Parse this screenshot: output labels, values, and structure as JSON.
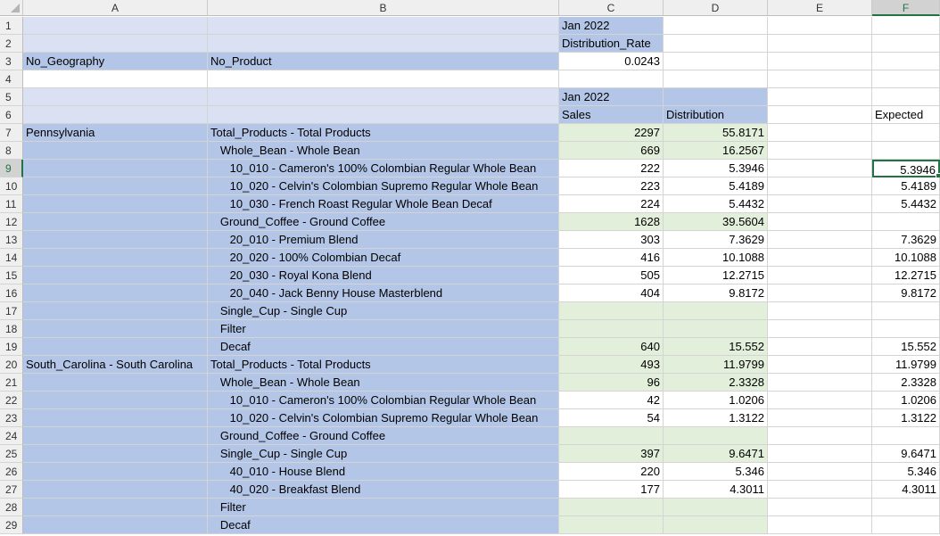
{
  "columns": [
    "A",
    "B",
    "C",
    "D",
    "E",
    "F"
  ],
  "selected_column": "F",
  "selected_row": "9",
  "rows": [
    {
      "n": "1",
      "a": "",
      "b": "",
      "c": "Jan 2022",
      "d": "",
      "e": "",
      "f": "",
      "st": {
        "a": "header",
        "b": "header",
        "c": "label",
        "d": "white"
      }
    },
    {
      "n": "2",
      "a": "",
      "b": "",
      "c": "Distribution_Rate",
      "d": "",
      "e": "",
      "f": "",
      "st": {
        "a": "header",
        "b": "header",
        "c": "label",
        "d": "white"
      }
    },
    {
      "n": "3",
      "a": "No_Geography",
      "b": "No_Product",
      "c": "0.0243",
      "d": "",
      "e": "",
      "f": "",
      "st": {
        "a": "label",
        "b": "label",
        "c": "white",
        "d": "white"
      },
      "num": [
        "c"
      ]
    },
    {
      "n": "4",
      "a": "",
      "b": "",
      "c": "",
      "d": "",
      "e": "",
      "f": "",
      "st": {}
    },
    {
      "n": "5",
      "a": "",
      "b": "",
      "c": "Jan 2022",
      "d": "",
      "e": "",
      "f": "",
      "st": {
        "a": "header",
        "b": "header",
        "c": "label",
        "d": "label"
      }
    },
    {
      "n": "6",
      "a": "",
      "b": "",
      "c": "Sales",
      "d": "Distribution",
      "e": "",
      "f": "Expected",
      "st": {
        "a": "header",
        "b": "header",
        "c": "label",
        "d": "label"
      }
    },
    {
      "n": "7",
      "a": "Pennsylvania",
      "b": "Total_Products - Total Products",
      "c": "2297",
      "d": "55.8171",
      "e": "",
      "f": "",
      "st": {
        "a": "label",
        "b": "label",
        "c": "green",
        "d": "green"
      },
      "num": [
        "c",
        "d"
      ]
    },
    {
      "n": "8",
      "a": "",
      "b": "   Whole_Bean - Whole Bean",
      "c": "669",
      "d": "16.2567",
      "e": "",
      "f": "",
      "st": {
        "a": "label",
        "b": "label",
        "c": "green",
        "d": "green"
      },
      "num": [
        "c",
        "d"
      ]
    },
    {
      "n": "9",
      "a": "",
      "b": "      10_010 - Cameron's 100% Colombian Regular Whole Bean",
      "c": "222",
      "d": "5.3946",
      "e": "",
      "f": "5.3946",
      "st": {
        "a": "label",
        "b": "label",
        "c": "white",
        "d": "white"
      },
      "num": [
        "c",
        "d",
        "f"
      ]
    },
    {
      "n": "10",
      "a": "",
      "b": "      10_020 - Celvin's Colombian Supremo Regular Whole Bean",
      "c": "223",
      "d": "5.4189",
      "e": "",
      "f": "5.4189",
      "st": {
        "a": "label",
        "b": "label",
        "c": "white",
        "d": "white"
      },
      "num": [
        "c",
        "d",
        "f"
      ]
    },
    {
      "n": "11",
      "a": "",
      "b": "      10_030 - French Roast Regular Whole Bean Decaf",
      "c": "224",
      "d": "5.4432",
      "e": "",
      "f": "5.4432",
      "st": {
        "a": "label",
        "b": "label",
        "c": "white",
        "d": "white"
      },
      "num": [
        "c",
        "d",
        "f"
      ]
    },
    {
      "n": "12",
      "a": "",
      "b": "   Ground_Coffee - Ground Coffee",
      "c": "1628",
      "d": "39.5604",
      "e": "",
      "f": "",
      "st": {
        "a": "label",
        "b": "label",
        "c": "green",
        "d": "green"
      },
      "num": [
        "c",
        "d"
      ]
    },
    {
      "n": "13",
      "a": "",
      "b": "      20_010 - Premium Blend",
      "c": "303",
      "d": "7.3629",
      "e": "",
      "f": "7.3629",
      "st": {
        "a": "label",
        "b": "label",
        "c": "white",
        "d": "white"
      },
      "num": [
        "c",
        "d",
        "f"
      ]
    },
    {
      "n": "14",
      "a": "",
      "b": "      20_020 - 100% Colombian Decaf",
      "c": "416",
      "d": "10.1088",
      "e": "",
      "f": "10.1088",
      "st": {
        "a": "label",
        "b": "label",
        "c": "white",
        "d": "white"
      },
      "num": [
        "c",
        "d",
        "f"
      ]
    },
    {
      "n": "15",
      "a": "",
      "b": "      20_030 - Royal Kona Blend",
      "c": "505",
      "d": "12.2715",
      "e": "",
      "f": "12.2715",
      "st": {
        "a": "label",
        "b": "label",
        "c": "white",
        "d": "white"
      },
      "num": [
        "c",
        "d",
        "f"
      ]
    },
    {
      "n": "16",
      "a": "",
      "b": "      20_040 - Jack Benny House Masterblend",
      "c": "404",
      "d": "9.8172",
      "e": "",
      "f": "9.8172",
      "st": {
        "a": "label",
        "b": "label",
        "c": "white",
        "d": "white"
      },
      "num": [
        "c",
        "d",
        "f"
      ]
    },
    {
      "n": "17",
      "a": "",
      "b": "   Single_Cup - Single Cup",
      "c": "",
      "d": "",
      "e": "",
      "f": "",
      "st": {
        "a": "label",
        "b": "label",
        "c": "green",
        "d": "green"
      }
    },
    {
      "n": "18",
      "a": "",
      "b": "   Filter",
      "c": "",
      "d": "",
      "e": "",
      "f": "",
      "st": {
        "a": "label",
        "b": "label",
        "c": "green",
        "d": "green"
      }
    },
    {
      "n": "19",
      "a": "",
      "b": "   Decaf",
      "c": "640",
      "d": "15.552",
      "e": "",
      "f": "15.552",
      "st": {
        "a": "label",
        "b": "label",
        "c": "green",
        "d": "green"
      },
      "num": [
        "c",
        "d",
        "f"
      ]
    },
    {
      "n": "20",
      "a": "South_Carolina - South Carolina",
      "b": "Total_Products - Total Products",
      "c": "493",
      "d": "11.9799",
      "e": "",
      "f": "11.9799",
      "st": {
        "a": "label",
        "b": "label",
        "c": "green",
        "d": "green"
      },
      "num": [
        "c",
        "d",
        "f"
      ]
    },
    {
      "n": "21",
      "a": "",
      "b": "   Whole_Bean - Whole Bean",
      "c": "96",
      "d": "2.3328",
      "e": "",
      "f": "2.3328",
      "st": {
        "a": "label",
        "b": "label",
        "c": "green",
        "d": "green"
      },
      "num": [
        "c",
        "d",
        "f"
      ]
    },
    {
      "n": "22",
      "a": "",
      "b": "      10_010 - Cameron's 100% Colombian Regular Whole Bean",
      "c": "42",
      "d": "1.0206",
      "e": "",
      "f": "1.0206",
      "st": {
        "a": "label",
        "b": "label",
        "c": "white",
        "d": "white"
      },
      "num": [
        "c",
        "d",
        "f"
      ]
    },
    {
      "n": "23",
      "a": "",
      "b": "      10_020 - Celvin's Colombian Supremo Regular Whole Bean",
      "c": "54",
      "d": "1.3122",
      "e": "",
      "f": "1.3122",
      "st": {
        "a": "label",
        "b": "label",
        "c": "white",
        "d": "white"
      },
      "num": [
        "c",
        "d",
        "f"
      ]
    },
    {
      "n": "24",
      "a": "",
      "b": "   Ground_Coffee - Ground Coffee",
      "c": "",
      "d": "",
      "e": "",
      "f": "",
      "st": {
        "a": "label",
        "b": "label",
        "c": "green",
        "d": "green"
      }
    },
    {
      "n": "25",
      "a": "",
      "b": "   Single_Cup - Single Cup",
      "c": "397",
      "d": "9.6471",
      "e": "",
      "f": "9.6471",
      "st": {
        "a": "label",
        "b": "label",
        "c": "green",
        "d": "green"
      },
      "num": [
        "c",
        "d",
        "f"
      ]
    },
    {
      "n": "26",
      "a": "",
      "b": "      40_010 - House Blend",
      "c": "220",
      "d": "5.346",
      "e": "",
      "f": "5.346",
      "st": {
        "a": "label",
        "b": "label",
        "c": "white",
        "d": "white"
      },
      "num": [
        "c",
        "d",
        "f"
      ]
    },
    {
      "n": "27",
      "a": "",
      "b": "      40_020 - Breakfast Blend",
      "c": "177",
      "d": "4.3011",
      "e": "",
      "f": "4.3011",
      "st": {
        "a": "label",
        "b": "label",
        "c": "white",
        "d": "white"
      },
      "num": [
        "c",
        "d",
        "f"
      ]
    },
    {
      "n": "28",
      "a": "",
      "b": "   Filter",
      "c": "",
      "d": "",
      "e": "",
      "f": "",
      "st": {
        "a": "label",
        "b": "label",
        "c": "green",
        "d": "green"
      }
    },
    {
      "n": "29",
      "a": "",
      "b": "   Decaf",
      "c": "",
      "d": "",
      "e": "",
      "f": "",
      "st": {
        "a": "label",
        "b": "label",
        "c": "green",
        "d": "green"
      }
    }
  ]
}
